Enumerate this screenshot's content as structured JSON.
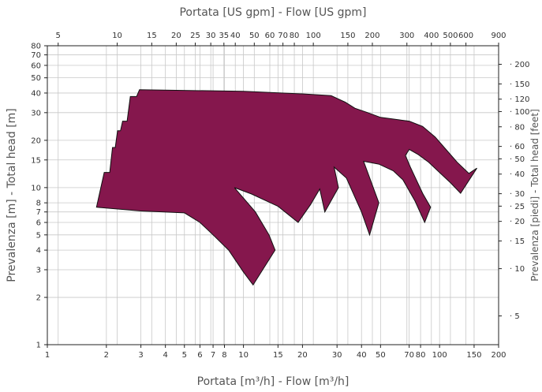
{
  "chart_data": {
    "type": "area",
    "x_scale": "log",
    "y_scale": "log",
    "grid": true,
    "xlabel_bottom": "Portata [m³/h] - Flow [m³/h]",
    "xlabel_top": "Portata [US gpm] - Flow [US gpm]",
    "ylabel_left": "Prevalenza [m] - Total head [m]",
    "ylabel_right": "Prevalenza [piedi] - Total head [feet]",
    "xlim": [
      1,
      200
    ],
    "ylim": [
      1,
      80
    ],
    "x_ticks_bottom": [
      1,
      2,
      3,
      4,
      5,
      6,
      7,
      8,
      10,
      15,
      20,
      30,
      40,
      50,
      70,
      80,
      100,
      150,
      200
    ],
    "x_tick_labels_bottom": [
      "1",
      "2",
      "3",
      "4",
      "5",
      "6",
      "7",
      "8",
      "10",
      "15",
      "20",
      "30",
      "40",
      "50",
      "70",
      "80",
      "100",
      "150",
      "200"
    ],
    "x_ticks_top_gpm": [
      5,
      10,
      15,
      20,
      25,
      30,
      35,
      40,
      50,
      60,
      70,
      80,
      100,
      150,
      200,
      300,
      400,
      500,
      600,
      900
    ],
    "x_tick_labels_top": [
      "5",
      "10",
      "15",
      "20",
      "25",
      "30",
      "35",
      "40",
      "50",
      "60",
      "70",
      "80",
      "100",
      "150",
      "200",
      "300",
      "400",
      "500",
      "600",
      "900"
    ],
    "y_ticks_left": [
      1,
      2,
      3,
      4,
      5,
      6,
      7,
      8,
      10,
      15,
      20,
      30,
      40,
      50,
      60,
      70,
      80
    ],
    "y_tick_labels_left": [
      "1",
      "2",
      "3",
      "4",
      "5",
      "6",
      "7",
      "8",
      "10",
      "15",
      "20",
      "30",
      "40",
      "50",
      "60",
      "70",
      "80"
    ],
    "y_ticks_right_feet": [
      5,
      10,
      15,
      20,
      25,
      30,
      40,
      50,
      60,
      80,
      100,
      120,
      150,
      200
    ],
    "y_tick_labels_right": [
      "5",
      "10",
      "15",
      "20",
      "25",
      "30",
      "40",
      "50",
      "60",
      "80",
      "100",
      "120",
      "150",
      "200"
    ],
    "fill_color": "#85174d",
    "series": [
      {
        "points": [
          [
            1.78,
            7.5
          ],
          [
            1.95,
            12.5
          ],
          [
            2.08,
            12.5
          ],
          [
            2.15,
            18
          ],
          [
            2.22,
            18
          ],
          [
            2.28,
            23
          ],
          [
            2.36,
            23
          ],
          [
            2.42,
            26.5
          ],
          [
            2.55,
            26.5
          ],
          [
            2.65,
            38
          ],
          [
            2.85,
            38
          ],
          [
            2.95,
            42
          ],
          [
            10,
            41
          ],
          [
            20,
            39.5
          ],
          [
            28,
            38.5
          ],
          [
            33,
            35
          ],
          [
            37,
            32
          ],
          [
            43,
            30
          ],
          [
            50,
            28
          ],
          [
            62,
            27
          ],
          [
            70,
            26.5
          ],
          [
            82,
            24.5
          ],
          [
            95,
            21
          ],
          [
            110,
            17
          ],
          [
            123,
            14.5
          ],
          [
            141,
            12.3
          ],
          [
            155,
            13.3
          ],
          [
            128,
            9.2
          ],
          [
            114,
            10.7
          ],
          [
            102,
            12.2
          ],
          [
            88,
            14.5
          ],
          [
            78,
            16.2
          ],
          [
            70,
            17.5
          ],
          [
            67,
            16
          ],
          [
            71,
            13.5
          ],
          [
            82,
            9.2
          ],
          [
            90,
            7.5
          ],
          [
            84,
            6
          ],
          [
            75,
            8.2
          ],
          [
            65,
            11.2
          ],
          [
            58,
            12.8
          ],
          [
            49,
            14.1
          ],
          [
            41,
            14.7
          ],
          [
            49,
            8
          ],
          [
            44,
            5
          ],
          [
            40,
            7
          ],
          [
            33.5,
            11.5
          ],
          [
            29,
            13.5
          ],
          [
            30.5,
            10
          ],
          [
            26,
            7
          ],
          [
            24.5,
            9.8
          ],
          [
            22,
            7.8
          ],
          [
            19,
            6
          ],
          [
            15,
            7.6
          ],
          [
            11,
            9.1
          ],
          [
            9,
            10
          ],
          [
            11.5,
            7
          ],
          [
            13.5,
            5
          ],
          [
            14.5,
            4
          ],
          [
            11.2,
            2.4
          ],
          [
            10,
            2.9
          ],
          [
            8.4,
            4
          ],
          [
            7,
            5
          ],
          [
            6,
            6
          ],
          [
            5,
            6.9
          ],
          [
            3,
            7.1
          ],
          [
            1.78,
            7.5
          ]
        ]
      }
    ]
  }
}
